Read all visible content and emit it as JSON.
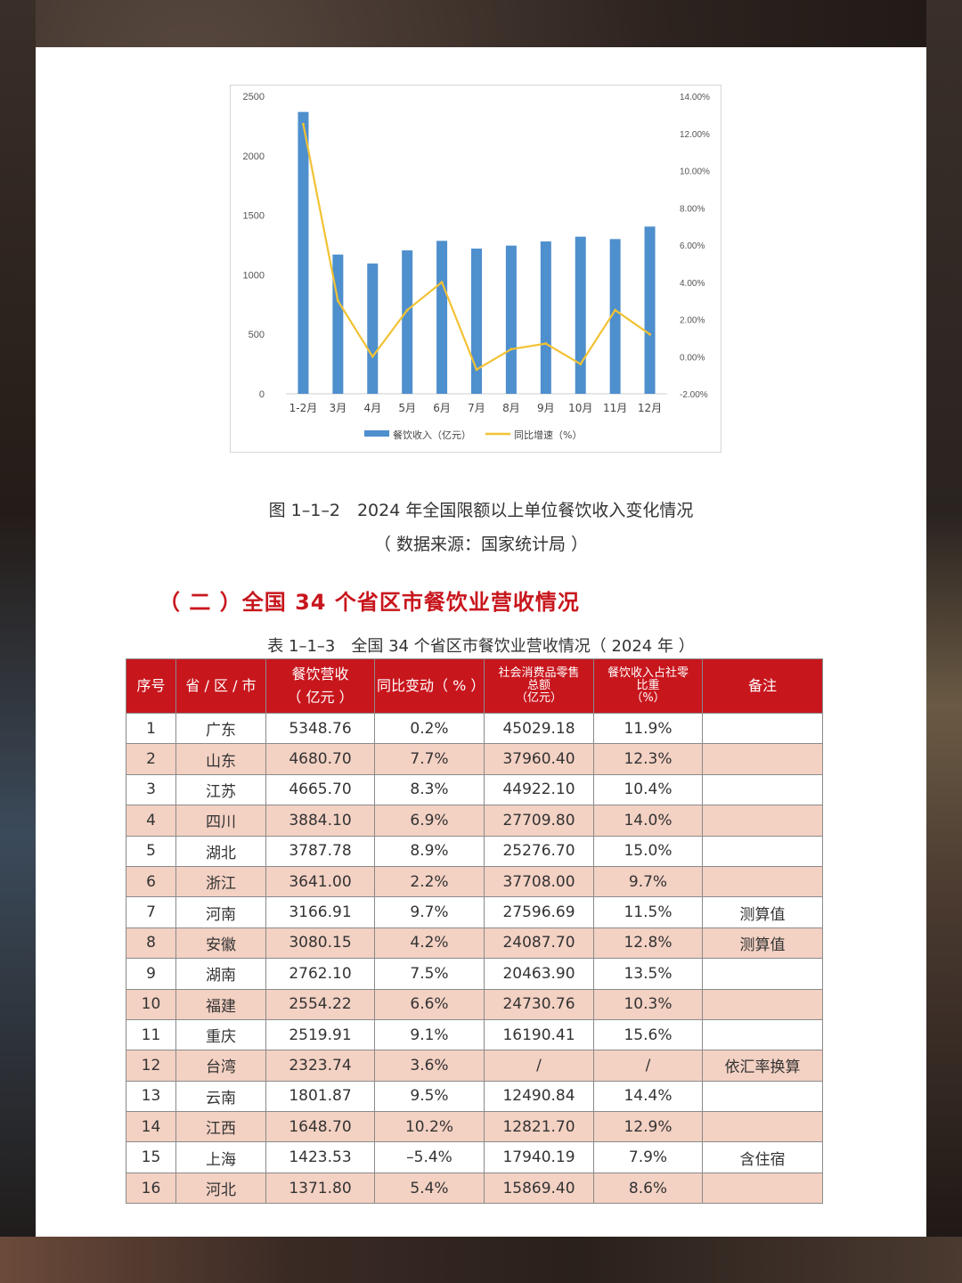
{
  "chart_data": {
    "type": "bar+line",
    "categories": [
      "1-2月",
      "3月",
      "4月",
      "5月",
      "6月",
      "7月",
      "8月",
      "9月",
      "10月",
      "11月",
      "12月"
    ],
    "series": [
      {
        "name": "餐饮收入（亿元）",
        "type": "bar",
        "axis": "left",
        "color": "#4e8fcd",
        "values": [
          2368,
          1170,
          1095,
          1205,
          1285,
          1220,
          1245,
          1280,
          1320,
          1300,
          1405
        ]
      },
      {
        "name": "同比增速（%）",
        "type": "line",
        "axis": "right",
        "color": "#f2c234",
        "values": [
          12.5,
          3.0,
          0.0,
          2.5,
          4.0,
          -0.7,
          0.4,
          0.7,
          -0.4,
          2.5,
          1.2
        ]
      }
    ],
    "left_axis": {
      "ticks": [
        "2500",
        "2000",
        "1500",
        "1000",
        "500",
        "0"
      ],
      "ylim": [
        0,
        2500
      ]
    },
    "right_axis": {
      "ticks": [
        "14.00%",
        "12.00%",
        "10.00%",
        "8.00%",
        "6.00%",
        "4.00%",
        "2.00%",
        "0.00%",
        "-2.00%"
      ],
      "ylim": [
        -2,
        14
      ]
    },
    "legend_position": "bottom",
    "grid": false
  },
  "figure": {
    "caption": "图 1–1–2　2024 年全国限额以上单位餐饮收入变化情况",
    "source": "（ 数据来源：国家统计局 ）"
  },
  "section": {
    "title": "（ 二 ）全国 34 个省区市餐饮业营收情况"
  },
  "table": {
    "title": "表 1–1–3　全国 34 个省区市餐饮业营收情况（ 2024 年 ）",
    "headers": {
      "idx": "序号",
      "prov": "省 / 区 / 市",
      "rev_1": "餐饮营收",
      "rev_2": "（ 亿元 ）",
      "yoy": "同比变动（ % ）",
      "retail_1": "社会消费品零售",
      "retail_2": "总额",
      "retail_3": "（亿元）",
      "share_1": "餐饮收入占社零",
      "share_2": "比重",
      "share_3": "（%）",
      "note": "备注"
    },
    "rows": [
      [
        "1",
        "广东",
        "5348.76",
        "0.2%",
        "45029.18",
        "11.9%",
        ""
      ],
      [
        "2",
        "山东",
        "4680.70",
        "7.7%",
        "37960.40",
        "12.3%",
        ""
      ],
      [
        "3",
        "江苏",
        "4665.70",
        "8.3%",
        "44922.10",
        "10.4%",
        ""
      ],
      [
        "4",
        "四川",
        "3884.10",
        "6.9%",
        "27709.80",
        "14.0%",
        ""
      ],
      [
        "5",
        "湖北",
        "3787.78",
        "8.9%",
        "25276.70",
        "15.0%",
        ""
      ],
      [
        "6",
        "浙江",
        "3641.00",
        "2.2%",
        "37708.00",
        "9.7%",
        ""
      ],
      [
        "7",
        "河南",
        "3166.91",
        "9.7%",
        "27596.69",
        "11.5%",
        "测算值"
      ],
      [
        "8",
        "安徽",
        "3080.15",
        "4.2%",
        "24087.70",
        "12.8%",
        "测算值"
      ],
      [
        "9",
        "湖南",
        "2762.10",
        "7.5%",
        "20463.90",
        "13.5%",
        ""
      ],
      [
        "10",
        "福建",
        "2554.22",
        "6.6%",
        "24730.76",
        "10.3%",
        ""
      ],
      [
        "11",
        "重庆",
        "2519.91",
        "9.1%",
        "16190.41",
        "15.6%",
        ""
      ],
      [
        "12",
        "台湾",
        "2323.74",
        "3.6%",
        "/",
        "/",
        "依汇率换算"
      ],
      [
        "13",
        "云南",
        "1801.87",
        "9.5%",
        "12490.84",
        "14.4%",
        ""
      ],
      [
        "14",
        "江西",
        "1648.70",
        "10.2%",
        "12821.70",
        "12.9%",
        ""
      ],
      [
        "15",
        "上海",
        "1423.53",
        "–5.4%",
        "17940.19",
        "7.9%",
        "含住宿"
      ],
      [
        "16",
        "河北",
        "1371.80",
        "5.4%",
        "15869.40",
        "8.6%",
        ""
      ]
    ]
  }
}
